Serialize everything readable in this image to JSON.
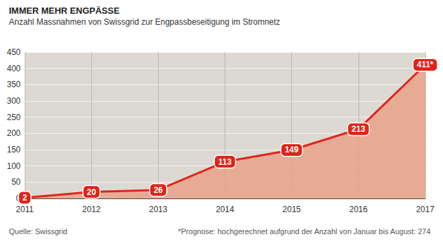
{
  "chart_data": {
    "type": "line",
    "title": "IMMER MEHR ENGPÄSSE",
    "subtitle": "Anzahl Massnahmen von Swissgrid zur Engpassbeseitigung im Stromnetz",
    "categories": [
      "2011",
      "2012",
      "2013",
      "2014",
      "2015",
      "2016",
      "2017"
    ],
    "values": [
      2,
      20,
      26,
      113,
      149,
      213,
      411
    ],
    "value_labels": [
      "2",
      "20",
      "26",
      "113",
      "149",
      "213",
      "411*"
    ],
    "color": "#e2231a",
    "ylim": [
      0,
      450
    ],
    "yticks": [
      0,
      50,
      100,
      150,
      200,
      250,
      300,
      350,
      400,
      450
    ],
    "grid": true,
    "data_labels": true,
    "annotations": [
      "Quelle: Swissgrid",
      "*Prognose: hochgerechnet aufgrund der Anzahl von Januar bis August: 274"
    ]
  }
}
